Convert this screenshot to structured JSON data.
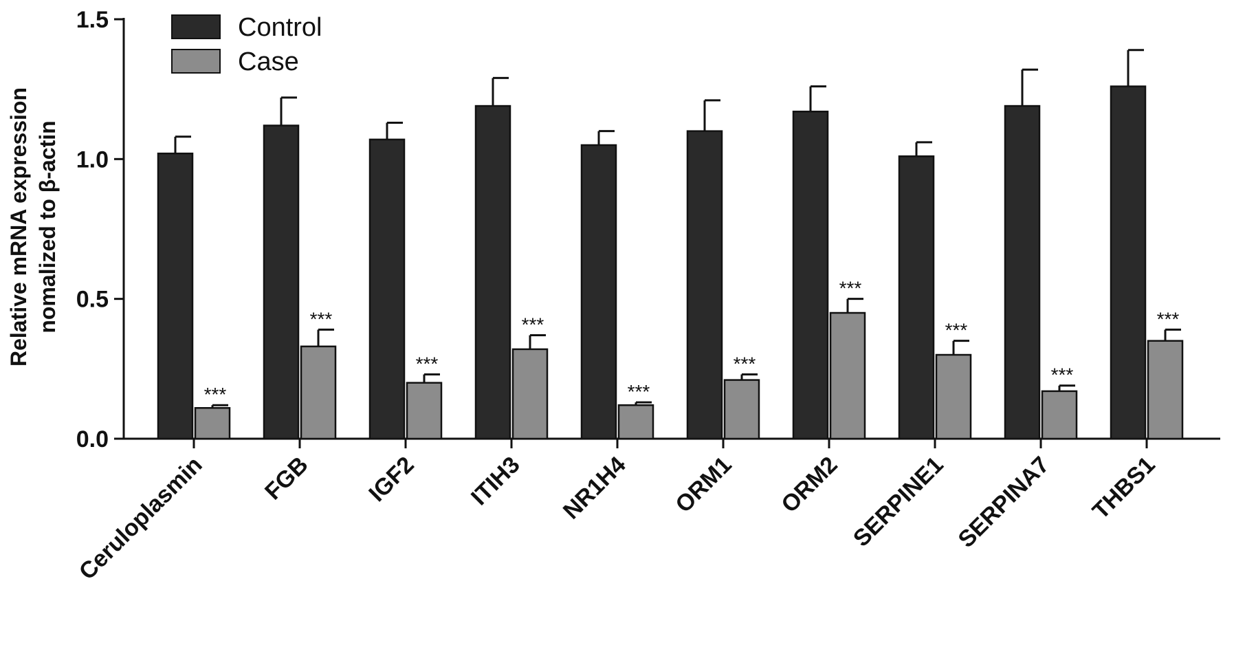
{
  "chart_data": {
    "type": "bar",
    "categories": [
      "Ceruloplasmin",
      "FGB",
      "IGF2",
      "ITIH3",
      "NR1H4",
      "ORM1",
      "ORM2",
      "SERPINE1",
      "SERPINA7",
      "THBS1"
    ],
    "series": [
      {
        "name": "Control",
        "color": "#2a2a2a",
        "values": [
          1.02,
          1.12,
          1.07,
          1.19,
          1.05,
          1.1,
          1.17,
          1.01,
          1.19,
          1.26
        ],
        "errors": [
          0.06,
          0.1,
          0.06,
          0.1,
          0.05,
          0.11,
          0.09,
          0.05,
          0.13,
          0.13
        ]
      },
      {
        "name": "Case",
        "color": "#8c8c8c",
        "values": [
          0.11,
          0.33,
          0.2,
          0.32,
          0.12,
          0.21,
          0.45,
          0.3,
          0.17,
          0.35
        ],
        "errors": [
          0.01,
          0.06,
          0.03,
          0.05,
          0.01,
          0.02,
          0.05,
          0.05,
          0.02,
          0.04
        ],
        "annotations": [
          "***",
          "***",
          "***",
          "***",
          "***",
          "***",
          "***",
          "***",
          "***",
          "***"
        ]
      }
    ],
    "ylabel_line1": "Relative mRNA expression",
    "ylabel_line2": "nomalized to β-actin",
    "ylim": [
      0,
      1.5
    ],
    "yticks": [
      "0.0",
      "0.5",
      "1.0",
      "1.5"
    ],
    "ytick_values": [
      0,
      0.5,
      1.0,
      1.5
    ],
    "legend_position": "top-left",
    "grid": false
  }
}
